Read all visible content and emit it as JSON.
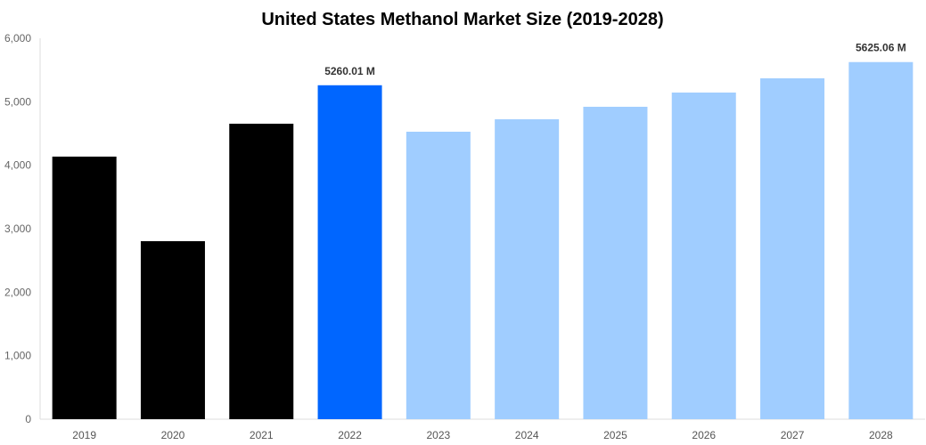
{
  "chart_data": {
    "type": "bar",
    "title": "United States Methanol Market Size (2019-2028)",
    "xlabel": "",
    "ylabel": "",
    "ylim": [
      0,
      6000
    ],
    "yticks": [
      "0",
      "1,000",
      "2,000",
      "3,000",
      "4,000",
      "5,000",
      "6,000"
    ],
    "categories": [
      "2019",
      "2020",
      "2021",
      "2022",
      "2023",
      "2024",
      "2025",
      "2026",
      "2027",
      "2028"
    ],
    "values": [
      4136,
      2804,
      4654,
      5260.01,
      4528,
      4724,
      4921,
      5145,
      5369,
      5625.06
    ],
    "bar_colors": [
      "#000000",
      "#000000",
      "#000000",
      "#0066ff",
      "#a0cdff",
      "#a0cdff",
      "#a0cdff",
      "#a0cdff",
      "#a0cdff",
      "#a0cdff"
    ],
    "data_labels": [
      {
        "category": "2022",
        "text": "5260.01 M"
      },
      {
        "category": "2028",
        "text": "5625.06 M"
      }
    ],
    "grid": false,
    "legend": "none"
  }
}
